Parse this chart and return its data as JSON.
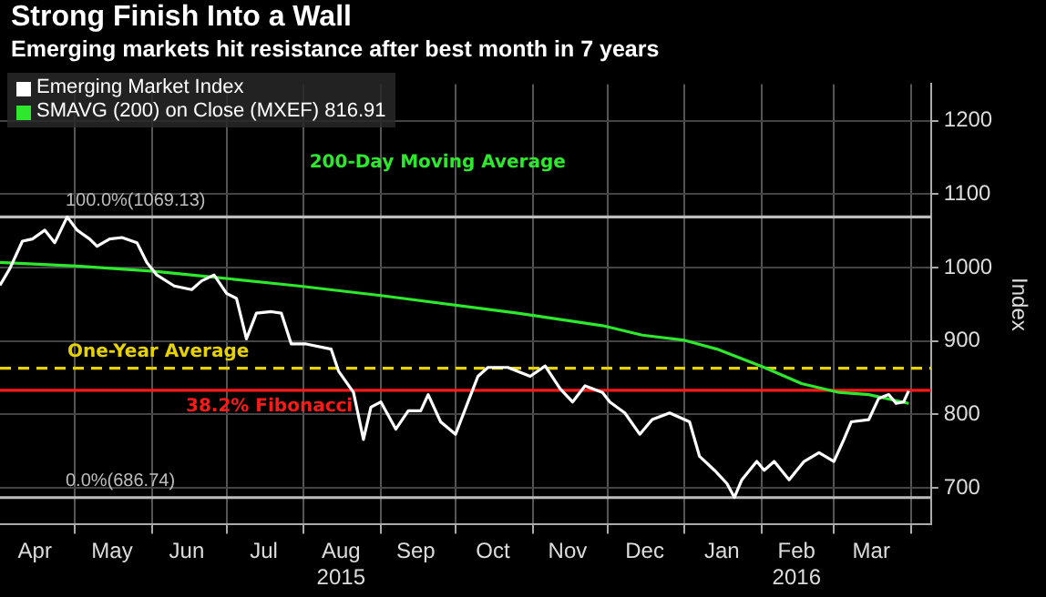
{
  "chart_data": {
    "type": "line",
    "title": "Strong Finish Into a Wall",
    "subtitle": "Emerging markets hit resistance after best month in 7 years",
    "ylabel": "Index",
    "xlim": [
      "2015-04-01",
      "2016-04-09"
    ],
    "ylim": [
      650,
      1250
    ],
    "xticks": [
      {
        "value": "2015-04-15",
        "label": "Apr"
      },
      {
        "value": "2015-05-01",
        "label": null
      },
      {
        "value": "2015-05-16",
        "label": "May"
      },
      {
        "value": "2015-06-01",
        "label": null
      },
      {
        "value": "2015-06-15",
        "label": "Jun"
      },
      {
        "value": "2015-07-01",
        "label": null
      },
      {
        "value": "2015-07-16",
        "label": "Jul"
      },
      {
        "value": "2015-08-01",
        "label": null
      },
      {
        "value": "2015-08-16",
        "label": "Aug\n2015"
      },
      {
        "value": "2015-09-01",
        "label": null
      },
      {
        "value": "2015-09-15",
        "label": "Sep"
      },
      {
        "value": "2015-10-01",
        "label": null
      },
      {
        "value": "2015-10-16",
        "label": "Oct"
      },
      {
        "value": "2015-11-01",
        "label": null
      },
      {
        "value": "2015-11-15",
        "label": "Nov"
      },
      {
        "value": "2015-12-01",
        "label": null
      },
      {
        "value": "2015-12-16",
        "label": "Dec"
      },
      {
        "value": "2016-01-01",
        "label": null
      },
      {
        "value": "2016-01-16",
        "label": "Jan"
      },
      {
        "value": "2016-02-01",
        "label": null
      },
      {
        "value": "2016-02-15",
        "label": "Feb\n2016"
      },
      {
        "value": "2016-03-01",
        "label": null
      },
      {
        "value": "2016-03-16",
        "label": "Mar"
      },
      {
        "value": "2016-04-01",
        "label": null
      }
    ],
    "yticks": [
      700,
      800,
      900,
      1000,
      1100,
      1200
    ],
    "grid": true,
    "legend": "top left",
    "marker": "none",
    "series": [
      {
        "name": "Emerging Market Index",
        "color": "#ffffff",
        "x": [
          "2015-04-01",
          "2015-04-05",
          "2015-04-10",
          "2015-04-14",
          "2015-04-19",
          "2015-04-23",
          "2015-04-28",
          "2015-05-02",
          "2015-05-07",
          "2015-05-10",
          "2015-05-15",
          "2015-05-20",
          "2015-05-26",
          "2015-05-30",
          "2015-06-03",
          "2015-06-10",
          "2015-06-17",
          "2015-06-21",
          "2015-06-26",
          "2015-07-01",
          "2015-07-05",
          "2015-07-09",
          "2015-07-13",
          "2015-07-19",
          "2015-07-23",
          "2015-07-27",
          "2015-08-02",
          "2015-08-12",
          "2015-08-15",
          "2015-08-21",
          "2015-08-25",
          "2015-08-28",
          "2015-09-01",
          "2015-09-07",
          "2015-09-12",
          "2015-09-17",
          "2015-09-20",
          "2015-09-25",
          "2015-10-01",
          "2015-10-06",
          "2015-10-10",
          "2015-10-14",
          "2015-10-22",
          "2015-10-31",
          "2015-11-06",
          "2015-11-12",
          "2015-11-17",
          "2015-11-22",
          "2015-11-29",
          "2015-12-02",
          "2015-12-08",
          "2015-12-14",
          "2015-12-19",
          "2015-12-26",
          "2016-01-03",
          "2016-01-07",
          "2016-01-13",
          "2016-01-18",
          "2016-01-21",
          "2016-01-24",
          "2016-01-30",
          "2016-02-02",
          "2016-02-06",
          "2016-02-12",
          "2016-02-18",
          "2016-02-24",
          "2016-03-01",
          "2016-03-05",
          "2016-03-08",
          "2016-03-15",
          "2016-03-19",
          "2016-03-23",
          "2016-03-26",
          "2016-03-29",
          "2016-03-31"
        ],
        "values": [
          976,
          999,
          1036,
          1039,
          1051,
          1034,
          1069,
          1051,
          1039,
          1029,
          1039,
          1041,
          1034,
          1007,
          990,
          975,
          970,
          982,
          990,
          965,
          958,
          903,
          938,
          940,
          938,
          896,
          896,
          889,
          859,
          830,
          766,
          810,
          817,
          780,
          805,
          805,
          827,
          790,
          773,
          817,
          852,
          864,
          864,
          852,
          866,
          835,
          817,
          839,
          830,
          817,
          802,
          773,
          793,
          802,
          790,
          743,
          724,
          706,
          687,
          711,
          736,
          724,
          736,
          711,
          736,
          748,
          736,
          766,
          790,
          793,
          822,
          827,
          815,
          817,
          832
        ]
      },
      {
        "name": "SMAVG (200) on Close (MXEF) 816.91",
        "color": "#2ee82e",
        "x": [
          "2015-04-01",
          "2015-05-02",
          "2015-06-02",
          "2015-06-26",
          "2015-07-30",
          "2015-09-01",
          "2015-10-26",
          "2015-11-29",
          "2015-12-15",
          "2016-01-01",
          "2016-01-14",
          "2016-02-02",
          "2016-02-17",
          "2016-03-03",
          "2016-03-15",
          "2016-03-31"
        ],
        "values": [
          1007,
          1002,
          995,
          987,
          975,
          962,
          938,
          921,
          908,
          901,
          889,
          864,
          842,
          830,
          827,
          815
        ]
      }
    ],
    "ref_lines": [
      {
        "axis": "y",
        "value": 1069.13,
        "label": "100.0%(1069.13)",
        "color": "#bdbdbd"
      },
      {
        "axis": "y",
        "value": 686.74,
        "label": "0.0%(686.74)",
        "color": "#bdbdbd"
      },
      {
        "axis": "y",
        "value": 832.8,
        "label": "38.2% Fibonacci",
        "color": "#ff1a1a"
      },
      {
        "axis": "y",
        "value": 863,
        "label": "One-Year Average",
        "color": "#e6d200",
        "line_style": "dashed"
      }
    ],
    "annotations": [
      "200-Day Moving Average"
    ]
  }
}
